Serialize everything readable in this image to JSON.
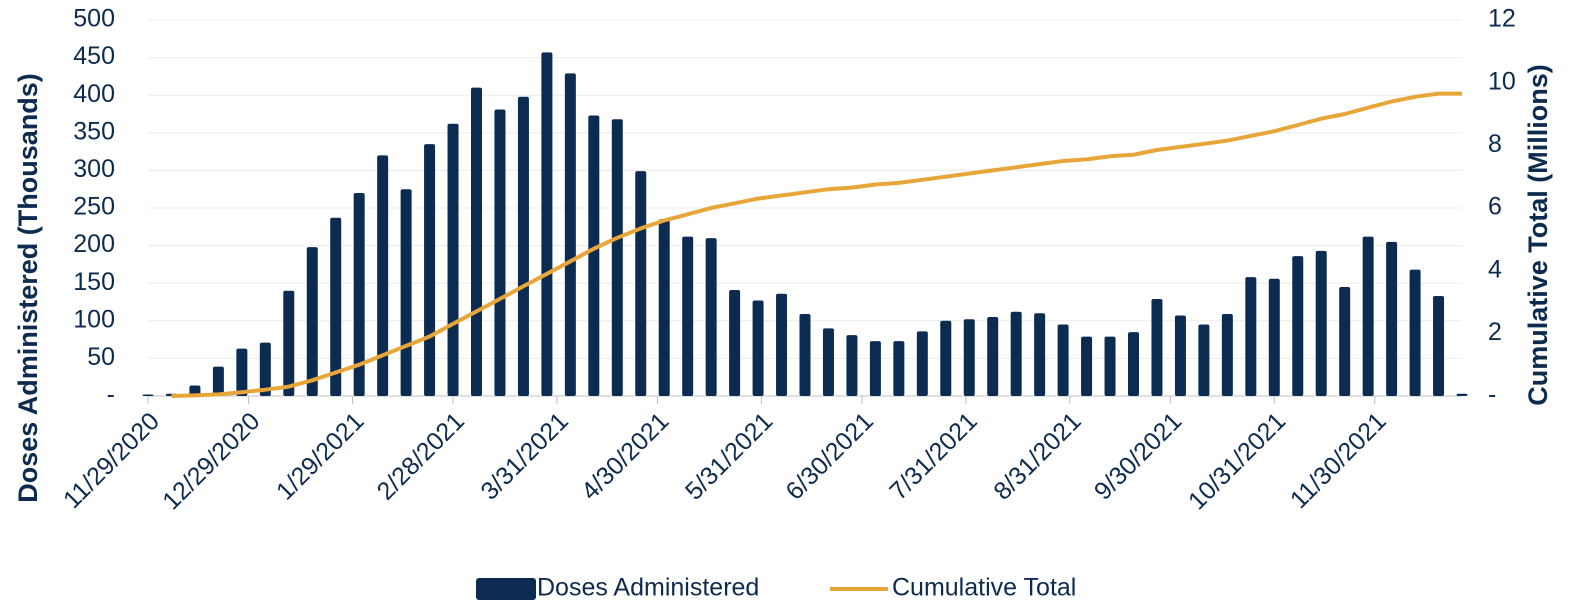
{
  "chart_data": {
    "type": "bar_line",
    "y_label": "Doses Administered (Thousands)",
    "y2_label": "Cumulative Total (Millions)",
    "x": [
      "11/29/2020",
      "12/6/2020",
      "12/13/2020",
      "12/20/2020",
      "12/27/2020",
      "1/3/2021",
      "1/10/2021",
      "1/17/2021",
      "1/24/2021",
      "1/31/2021",
      "2/7/2021",
      "2/14/2021",
      "2/21/2021",
      "2/28/2021",
      "3/7/2021",
      "3/14/2021",
      "3/21/2021",
      "3/28/2021",
      "4/4/2021",
      "4/11/2021",
      "4/18/2021",
      "4/25/2021",
      "5/2/2021",
      "5/9/2021",
      "5/16/2021",
      "5/23/2021",
      "5/30/2021",
      "6/6/2021",
      "6/13/2021",
      "6/20/2021",
      "6/27/2021",
      "7/4/2021",
      "7/11/2021",
      "7/18/2021",
      "7/25/2021",
      "8/1/2021",
      "8/8/2021",
      "8/15/2021",
      "8/22/2021",
      "8/29/2021",
      "9/5/2021",
      "9/12/2021",
      "9/19/2021",
      "9/26/2021",
      "10/3/2021",
      "10/10/2021",
      "10/17/2021",
      "10/24/2021",
      "10/31/2021",
      "11/7/2021",
      "11/14/2021",
      "11/21/2021",
      "11/28/2021",
      "12/5/2021",
      "12/12/2021",
      "12/19/2021",
      "12/26/2021"
    ],
    "series": [
      {
        "name": "Doses Administered",
        "color": "#0b2c50",
        "axis": "y",
        "values": [
          2,
          3,
          14,
          39,
          63,
          71,
          140,
          198,
          237,
          270,
          320,
          275,
          335,
          362,
          410,
          381,
          398,
          457,
          429,
          373,
          368,
          299,
          235,
          212,
          210,
          141,
          127,
          136,
          109,
          90,
          81,
          73,
          73,
          86,
          100,
          102,
          105,
          112,
          110,
          95,
          79,
          79,
          85,
          129,
          107,
          95,
          109,
          158,
          156,
          186,
          193,
          145,
          212,
          205,
          168,
          133,
          3
        ]
      },
      {
        "name": "Cumulative Total",
        "color": "#e8a63a",
        "axis": "y2",
        "values": [
          null,
          0,
          0.02,
          0.05,
          0.12,
          0.2,
          0.3,
          0.5,
          0.75,
          1.0,
          1.3,
          1.6,
          1.9,
          2.3,
          2.7,
          3.1,
          3.5,
          3.9,
          4.3,
          4.7,
          5.05,
          5.35,
          5.6,
          5.8,
          6.0,
          6.15,
          6.3,
          6.4,
          6.5,
          6.6,
          6.65,
          6.75,
          6.8,
          6.9,
          7.0,
          7.1,
          7.2,
          7.3,
          7.4,
          7.5,
          7.55,
          7.65,
          7.7,
          7.85,
          7.95,
          8.05,
          8.15,
          8.3,
          8.45,
          8.65,
          8.85,
          9.0,
          9.2,
          9.4,
          9.55,
          9.65,
          9.65
        ]
      }
    ],
    "xlim": [
      "11/29/2020",
      "12/26/2021"
    ],
    "xticks": [
      "11/29/2020",
      "12/29/2020",
      "1/29/2021",
      "2/28/2021",
      "3/31/2021",
      "4/30/2021",
      "5/31/2021",
      "6/30/2021",
      "7/31/2021",
      "8/31/2021",
      "9/30/2021",
      "10/31/2021",
      "11/30/2021"
    ],
    "ylim": [
      0,
      500
    ],
    "yticks": [
      {
        "value": 0,
        "label": "-"
      },
      50,
      100,
      150,
      200,
      250,
      300,
      350,
      400,
      450,
      500
    ],
    "y2lim": [
      0,
      12
    ],
    "y2ticks": [
      {
        "value": 0,
        "label": "-"
      },
      2,
      4,
      6,
      8,
      10,
      12
    ],
    "grid": true,
    "legend": "bottom"
  }
}
